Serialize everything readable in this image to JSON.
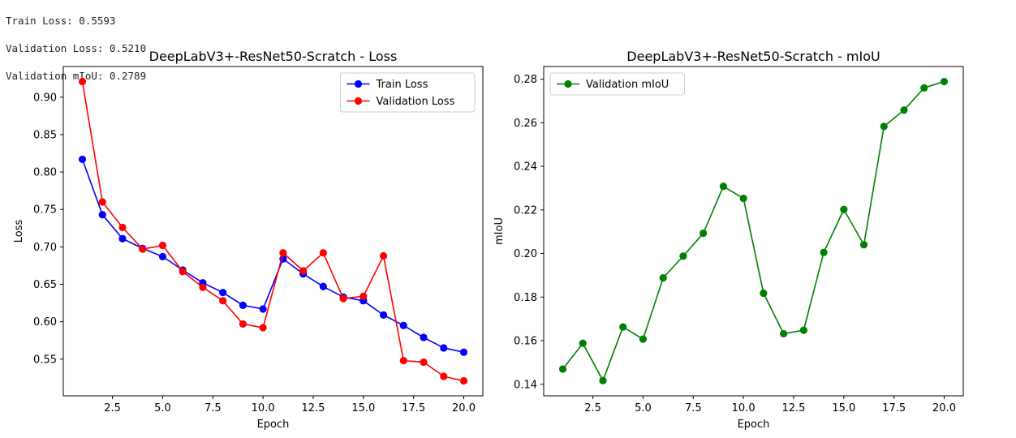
{
  "log": [
    "Train Loss: 0.5593",
    "Validation Loss: 0.5210",
    "Validation mIoU: 0.2789"
  ],
  "chart_data": [
    {
      "type": "line",
      "title": "DeepLabV3+-ResNet50-Scratch - Loss",
      "xlabel": "Epoch",
      "ylabel": "Loss",
      "xlim": [
        0.05,
        20.95
      ],
      "ylim": [
        0.501,
        0.941
      ],
      "xticks": [
        2.5,
        5.0,
        7.5,
        10.0,
        12.5,
        15.0,
        17.5,
        20.0
      ],
      "yticks": [
        0.55,
        0.6,
        0.65,
        0.7,
        0.75,
        0.8,
        0.85,
        0.9
      ],
      "tick_decimals": 2,
      "legend": "top-right",
      "grid": false,
      "x": [
        1,
        2,
        3,
        4,
        5,
        6,
        7,
        8,
        9,
        10,
        11,
        12,
        13,
        14,
        15,
        16,
        17,
        18,
        19,
        20
      ],
      "series": [
        {
          "name": "Train Loss",
          "color": "#0000ff",
          "values": [
            0.817,
            0.743,
            0.711,
            0.698,
            0.687,
            0.669,
            0.652,
            0.639,
            0.622,
            0.617,
            0.684,
            0.664,
            0.647,
            0.633,
            0.628,
            0.609,
            0.595,
            0.579,
            0.565,
            0.5593
          ]
        },
        {
          "name": "Validation Loss",
          "color": "#ff0000",
          "values": [
            0.921,
            0.76,
            0.726,
            0.697,
            0.702,
            0.667,
            0.646,
            0.628,
            0.597,
            0.592,
            0.692,
            0.668,
            0.692,
            0.631,
            0.634,
            0.688,
            0.548,
            0.546,
            0.527,
            0.521
          ]
        }
      ]
    },
    {
      "type": "line",
      "title": "DeepLabV3+-ResNet50-Scratch - mIoU",
      "xlabel": "Epoch",
      "ylabel": "mIoU",
      "xlim": [
        0.05,
        20.95
      ],
      "ylim": [
        0.1347,
        0.2858
      ],
      "xticks": [
        2.5,
        5.0,
        7.5,
        10.0,
        12.5,
        15.0,
        17.5,
        20.0
      ],
      "yticks": [
        0.14,
        0.16,
        0.18,
        0.2,
        0.22,
        0.24,
        0.26,
        0.28
      ],
      "tick_decimals": 2,
      "legend": "top-left",
      "grid": false,
      "x": [
        1,
        2,
        3,
        4,
        5,
        6,
        7,
        8,
        9,
        10,
        11,
        12,
        13,
        14,
        15,
        16,
        17,
        18,
        19,
        20
      ],
      "series": [
        {
          "name": "Validation mIoU",
          "color": "#008000",
          "values": [
            0.147,
            0.1588,
            0.1417,
            0.1663,
            0.1607,
            0.1888,
            0.1988,
            0.2093,
            0.2308,
            0.2253,
            0.1818,
            0.1632,
            0.1648,
            0.2005,
            0.2202,
            0.204,
            0.2583,
            0.2658,
            0.276,
            0.2789
          ]
        }
      ]
    }
  ]
}
